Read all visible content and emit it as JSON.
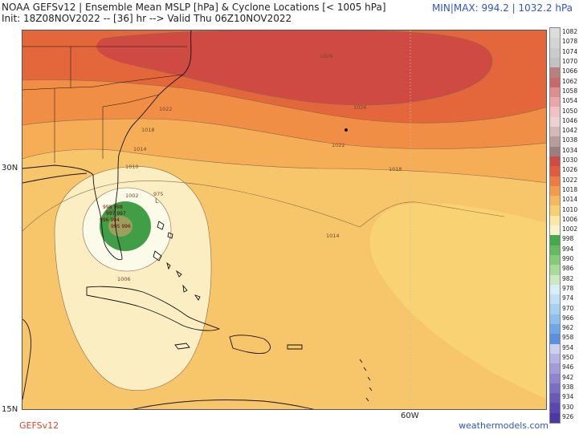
{
  "header": {
    "line1": "NOAA GEFSv12 | Ensemble Mean MSLP [hPa] & Cyclone Locations [< 1005 hPa]",
    "line2": "Init: 18Z08NOV2022 -- [36] hr --> Valid Thu 06Z10NOV2022",
    "minmax": "MIN|MAX: 994.2 | 1032.2 hPa"
  },
  "axes": {
    "lat_30": "30N",
    "lat_15": "15N",
    "lon_60": "60W"
  },
  "footer": {
    "model": "GEFSv12",
    "site": "weathermodels.com"
  },
  "contours": {
    "c1026": "1026",
    "c1022a": "1022",
    "c1022b": "1022",
    "c1018a": "1018",
    "c1018b": "1018",
    "c1014a": "1014",
    "c1014b": "1014",
    "c1010": "1010",
    "c1006": "1006",
    "c1002": "1002",
    "c998": "998",
    "c975": "975",
    "low": "L"
  },
  "colorbar": {
    "labels": [
      "1082",
      "1078",
      "1074",
      "1070",
      "1066",
      "1062",
      "1058",
      "1054",
      "1050",
      "1046",
      "1042",
      "1038",
      "1034",
      "1030",
      "1026",
      "1022",
      "1018",
      "1014",
      "1010",
      "1006",
      "1002",
      "998",
      "994",
      "990",
      "986",
      "982",
      "978",
      "974",
      "970",
      "966",
      "962",
      "958",
      "954",
      "950",
      "946",
      "942",
      "938",
      "934",
      "930",
      "926"
    ],
    "colors": [
      "#dcdcdc",
      "#d4d4d4",
      "#cbcbcb",
      "#c2c2c2",
      "#b98080",
      "#c86a6a",
      "#e08d8d",
      "#eba7a7",
      "#f2c1c1",
      "#ecd3d3",
      "#d6b8b8",
      "#b79c9c",
      "#9b7f7f",
      "#d24a45",
      "#e05c3d",
      "#ee7b42",
      "#f39a4b",
      "#f7b85c",
      "#f9d06e",
      "#fbe7a6",
      "#f7f3cc",
      "#45a84a",
      "#62bb5d",
      "#82cc77",
      "#a6dc9a",
      "#cbe9c2",
      "#d8eef8",
      "#bfe0f6",
      "#a6d0f2",
      "#8dbfee",
      "#6da7e8",
      "#5791e0",
      "#cdd0ef",
      "#b8b3e5",
      "#a49bdb",
      "#9084d1",
      "#7c6dc6",
      "#6b58bb",
      "#5c46b0",
      "#4e36a5"
    ]
  }
}
